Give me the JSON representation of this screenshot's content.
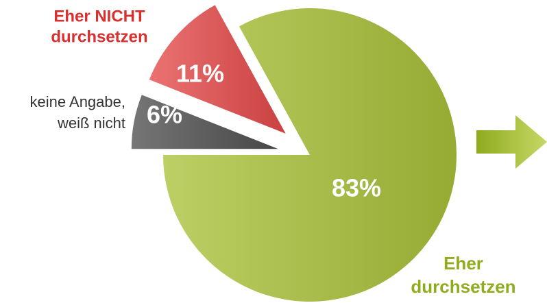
{
  "chart_data": {
    "type": "pie",
    "categories": [
      [
        "Eher",
        "durchsetzen"
      ],
      [
        "keine Angabe,",
        "weiß nicht"
      ],
      [
        "Eher NICHT",
        "durchsetzen"
      ]
    ],
    "values": [
      83,
      6,
      11
    ],
    "value_labels": [
      "83%",
      "6%",
      "11%"
    ],
    "colors": [
      "#a9c23a",
      "#4f4f4f",
      "#e54a4a"
    ],
    "exploded": [
      false,
      true,
      true
    ]
  }
}
